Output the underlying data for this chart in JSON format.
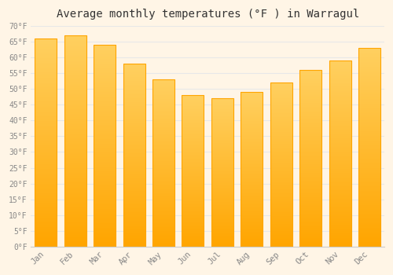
{
  "months": [
    "Jan",
    "Feb",
    "Mar",
    "Apr",
    "May",
    "Jun",
    "Jul",
    "Aug",
    "Sep",
    "Oct",
    "Nov",
    "Dec"
  ],
  "values": [
    66,
    67,
    64,
    58,
    53,
    48,
    47,
    49,
    52,
    56,
    59,
    63
  ],
  "bar_color_top": "#FFC125",
  "bar_color_bottom": "#FFA500",
  "title": "Average monthly temperatures (°F ) in Warragul",
  "title_fontsize": 10,
  "ylim": [
    0,
    70
  ],
  "ytick_step": 5,
  "background_color": "#FFF5E6",
  "grid_color": "#E8E8E8",
  "tick_label_color": "#888888",
  "font_family": "monospace",
  "title_color": "#333333"
}
